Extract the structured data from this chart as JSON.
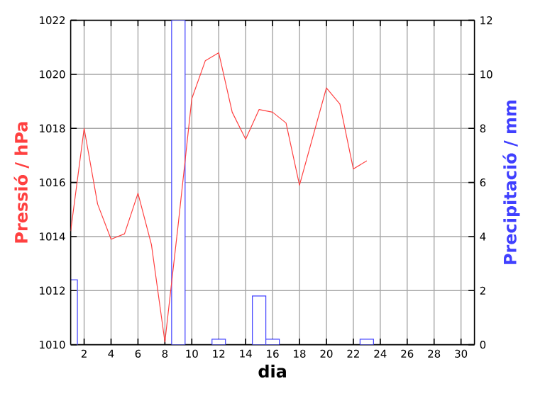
{
  "chart_data": {
    "type": "line",
    "xlabel": "dia",
    "ylabel": "Pressió / hPa",
    "y2label": "Precipitació / mm",
    "xlim": [
      1,
      31
    ],
    "xticks": [
      2,
      4,
      6,
      8,
      10,
      12,
      14,
      16,
      18,
      20,
      22,
      24,
      26,
      28,
      30
    ],
    "ylim": [
      1010,
      1022
    ],
    "yticks": [
      1010,
      1012,
      1014,
      1016,
      1018,
      1020,
      1022
    ],
    "y2lim": [
      0,
      12
    ],
    "y2ticks": [
      0,
      2,
      4,
      6,
      8,
      10,
      12
    ],
    "grid": true,
    "series": [
      {
        "color": "#ff4040",
        "x": [
          1,
          2,
          3,
          4,
          5,
          6,
          7,
          8,
          9,
          10,
          11,
          12,
          13,
          14,
          15,
          16,
          17,
          18,
          19,
          20,
          21,
          22,
          23
        ],
        "values": [
          1014.2,
          1018.0,
          1015.2,
          1013.9,
          1014.1,
          1015.6,
          1013.7,
          1010.1,
          1014.5,
          1019.1,
          1020.5,
          1020.8,
          1018.6,
          1017.6,
          1018.7,
          1018.6,
          1018.2,
          1015.9,
          1017.7,
          1019.5,
          1018.9,
          1016.5,
          1016.8
        ]
      },
      {
        "type": "bar",
        "axis": "y2",
        "color": "#4040ff",
        "x": [
          1,
          9,
          12,
          15,
          16,
          23
        ],
        "values": [
          2.4,
          12,
          0.2,
          1.8,
          0.2,
          0.2
        ]
      }
    ]
  }
}
